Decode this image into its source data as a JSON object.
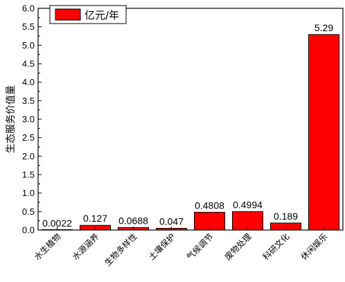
{
  "chart_data": {
    "type": "bar",
    "categories": [
      "水生植物",
      "水源涵养",
      "生物多样性",
      "土壤保护",
      "气候调节",
      "废物处理",
      "科研文化",
      "休闲娱乐"
    ],
    "series": [
      {
        "name": "亿元/年",
        "values": [
          0.0022,
          0.127,
          0.0688,
          0.047,
          0.4808,
          0.4994,
          0.189,
          5.29
        ],
        "color": "#ff0000"
      }
    ],
    "data_labels": [
      "0.0022",
      "0.127",
      "0.0688",
      "0.047",
      "0.4808",
      "0.4994",
      "0.189",
      "5.29"
    ],
    "ylabel": "生态服务价值量",
    "xlabel": "",
    "ylim": [
      0,
      6.0
    ],
    "yticks": [
      "0.0",
      "0.5",
      "1.0",
      "1.5",
      "2.0",
      "2.5",
      "3.0",
      "3.5",
      "4.0",
      "4.5",
      "5.0",
      "5.5",
      "6.0"
    ],
    "grid": false,
    "legend_position": "top-left",
    "axis_color": "#000000"
  }
}
